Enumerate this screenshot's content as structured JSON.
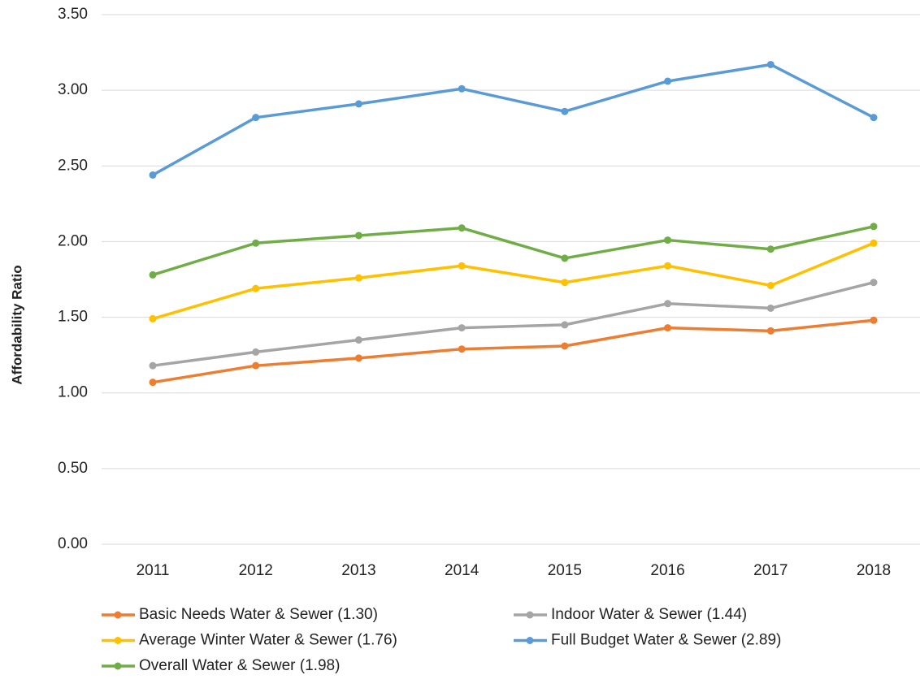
{
  "chart_data": {
    "type": "line",
    "y_label": "Affordability Ratio",
    "categories": [
      "2011",
      "2012",
      "2013",
      "2014",
      "2015",
      "2016",
      "2017",
      "2018"
    ],
    "series": [
      {
        "name": "Basic Needs Water & Sewer (1.30)",
        "color": "#ED7D31",
        "values": [
          1.07,
          1.18,
          1.23,
          1.29,
          1.31,
          1.43,
          1.41,
          1.48
        ]
      },
      {
        "name": "Indoor Water & Sewer (1.44)",
        "color": "#A5A5A5",
        "values": [
          1.18,
          1.27,
          1.35,
          1.43,
          1.45,
          1.59,
          1.56,
          1.73
        ]
      },
      {
        "name": "Average Winter Water & Sewer (1.76)",
        "color": "#FFC000",
        "values": [
          1.49,
          1.69,
          1.76,
          1.84,
          1.73,
          1.84,
          1.71,
          1.99
        ]
      },
      {
        "name": "Full Budget Water & Sewer (2.89)",
        "color": "#5B9BD5",
        "values": [
          2.44,
          2.82,
          2.91,
          3.01,
          2.86,
          3.06,
          3.17,
          2.82
        ]
      },
      {
        "name": "Overall Water & Sewer (1.98)",
        "color": "#70AD47",
        "values": [
          1.78,
          1.99,
          2.04,
          2.09,
          1.89,
          2.01,
          1.95,
          2.1
        ]
      }
    ],
    "ylim": [
      0,
      3.5
    ],
    "yticks": [
      {
        "value": 0,
        "label": "0.00"
      },
      {
        "value": 0.5,
        "label": "0.50"
      },
      {
        "value": 1,
        "label": "1.00"
      },
      {
        "value": 1.5,
        "label": "1.50"
      },
      {
        "value": 2,
        "label": "2.00"
      },
      {
        "value": 2.5,
        "label": "2.50"
      },
      {
        "value": 3,
        "label": "3.00"
      },
      {
        "value": 3.5,
        "label": "3.50"
      }
    ],
    "grid": true
  }
}
